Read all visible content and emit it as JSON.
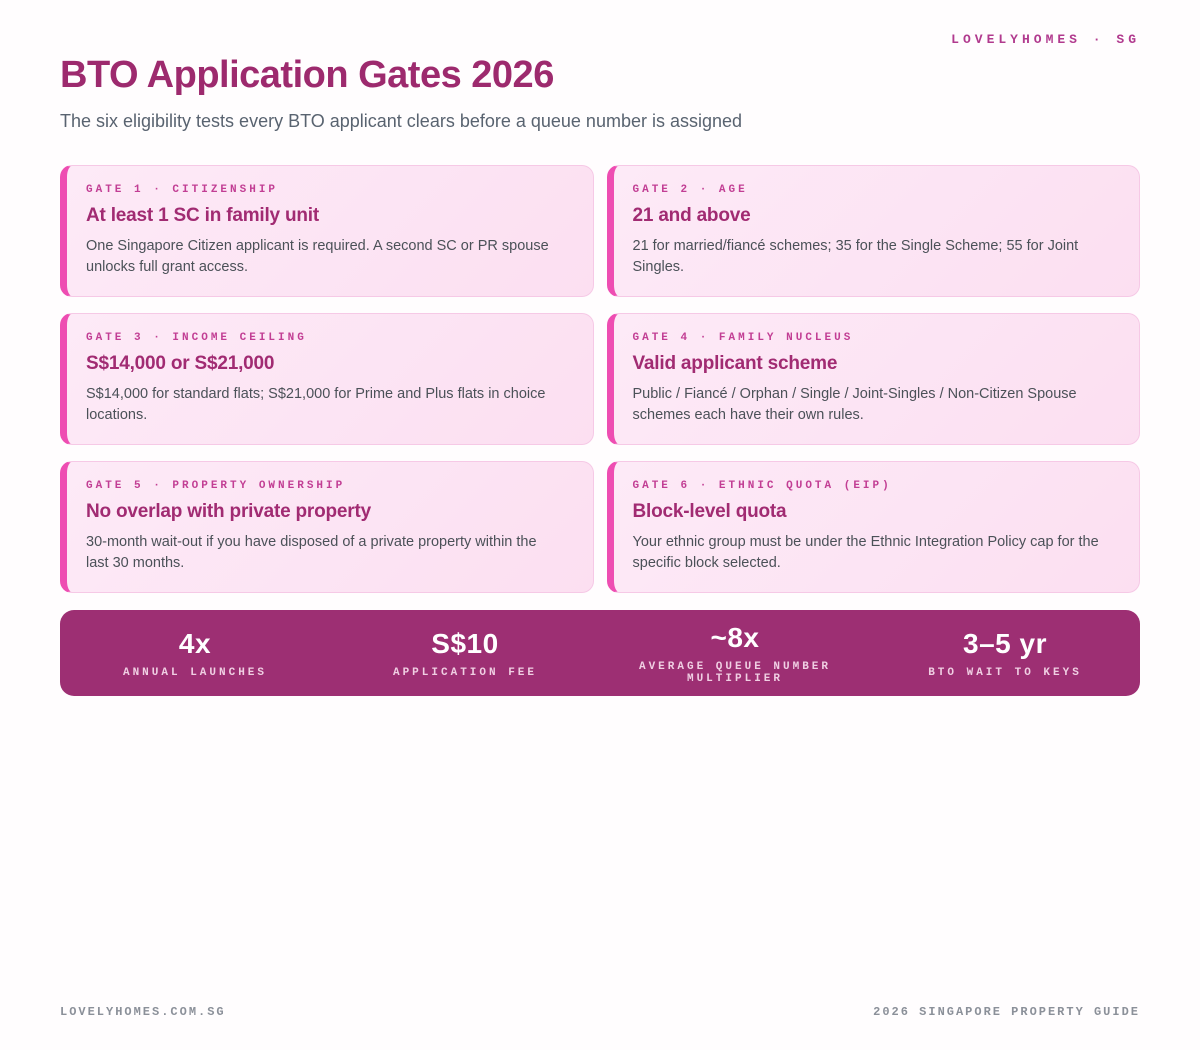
{
  "brand": "LOVELYHOMES · SG",
  "header": {
    "title": "BTO Application Gates 2026",
    "subtitle": "The six eligibility tests every BTO applicant clears before a queue number is assigned"
  },
  "gates": [
    {
      "eyebrow": "GATE 1 · CITIZENSHIP",
      "title": "At least 1 SC in family unit",
      "body": "One Singapore Citizen applicant is required. A second SC or PR spouse unlocks full grant access."
    },
    {
      "eyebrow": "GATE 2 · AGE",
      "title": "21 and above",
      "body": "21 for married/fiancé schemes; 35 for the Single Scheme; 55 for Joint Singles."
    },
    {
      "eyebrow": "GATE 3 · INCOME CEILING",
      "title": "S$14,000 or S$21,000",
      "body": "S$14,000 for standard flats; S$21,000 for Prime and Plus flats in choice locations."
    },
    {
      "eyebrow": "GATE 4 · FAMILY NUCLEUS",
      "title": "Valid applicant scheme",
      "body": "Public / Fiancé / Orphan / Single / Joint-Singles / Non-Citizen Spouse schemes each have their own rules."
    },
    {
      "eyebrow": "GATE 5 · PROPERTY OWNERSHIP",
      "title": "No overlap with private property",
      "body": "30-month wait-out if you have disposed of a private property within the last 30 months."
    },
    {
      "eyebrow": "GATE 6 · ETHNIC QUOTA (EIP)",
      "title": "Block-level quota",
      "body": "Your ethnic group must be under the Ethnic Integration Policy cap for the specific block selected."
    }
  ],
  "stats": [
    {
      "value": "4x",
      "label": "ANNUAL LAUNCHES"
    },
    {
      "value": "S$10",
      "label": "APPLICATION FEE"
    },
    {
      "value": "~8x",
      "label": "AVERAGE QUEUE NUMBER MULTIPLIER"
    },
    {
      "value": "3–5 yr",
      "label": "BTO WAIT TO KEYS"
    }
  ],
  "footer": {
    "left": "LOVELYHOMES.COM.SG",
    "right": "2026 SINGAPORE PROPERTY GUIDE"
  },
  "colors": {
    "brand_magenta": "#b13a8e",
    "title_magenta": "#9d2a6e",
    "card_accent_pink": "#ee4db2",
    "card_background": "#fce3f2",
    "stats_bar_background": "#9d2f73",
    "body_text": "#4b5158",
    "footer_gray": "#8b9099"
  }
}
